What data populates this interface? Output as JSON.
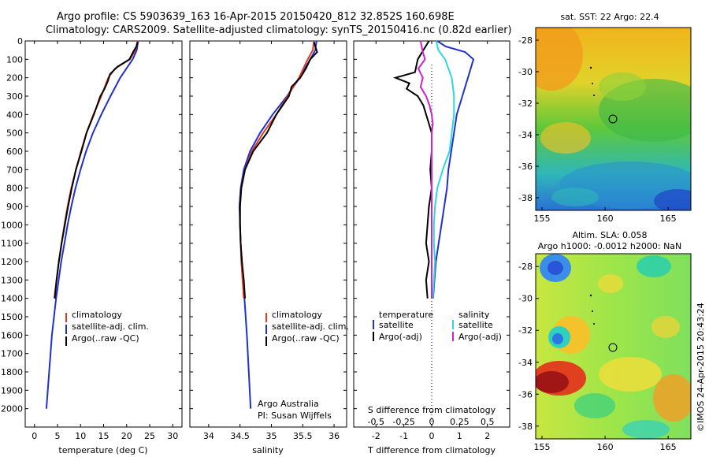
{
  "header": {
    "line1": "Argo profile: CS 5903639_163 16-Apr-2015 20150420_812 32.852S 160.698E",
    "line2": "Climatology: CARS2009. Satellite-adjusted climatology: synTS_20150416.nc (0.82d earlier)"
  },
  "colors": {
    "climatology": "#e03a1e",
    "satellite": "#1f2fd0",
    "argo": "#000000",
    "sat_salinity": "#2fd6e0",
    "argo_salinity_adj": "#d020d0"
  },
  "chart_data": [
    {
      "type": "line",
      "name": "temperature-profile",
      "xlabel": "temperature (deg C)",
      "ylabel": "",
      "xlim": [
        -2,
        32
      ],
      "ylim": [
        2100,
        0
      ],
      "xticks": [
        0,
        5,
        10,
        15,
        20,
        25,
        30
      ],
      "yticks": [
        0,
        100,
        200,
        300,
        400,
        500,
        600,
        700,
        800,
        900,
        1000,
        1100,
        1200,
        1300,
        1400,
        1500,
        1600,
        1700,
        1800,
        1900,
        2000
      ],
      "legend": [
        "climatology",
        "satellite-adj. clim.",
        "Argo(..raw -QC)"
      ],
      "series": [
        {
          "name": "satellite-adj. clim.",
          "color": "#1f2fd0",
          "depth": [
            0,
            50,
            100,
            200,
            300,
            400,
            500,
            600,
            700,
            800,
            900,
            1000,
            1100,
            1200,
            1400,
            1600,
            1800,
            2000
          ],
          "values": [
            22.5,
            22.2,
            21.3,
            18.6,
            16.5,
            14.5,
            12.7,
            11.2,
            10.0,
            8.9,
            8.0,
            7.2,
            6.5,
            5.8,
            4.7,
            3.8,
            3.2,
            2.6
          ]
        },
        {
          "name": "climatology",
          "color": "#e03a1e",
          "depth": [
            0,
            50,
            100,
            150,
            200,
            300,
            400,
            500,
            600,
            700,
            800,
            900,
            1000,
            1100,
            1200,
            1300,
            1400
          ],
          "values": [
            22.4,
            21.9,
            20.7,
            17.5,
            16.0,
            14.5,
            12.8,
            11.3,
            10.1,
            9.0,
            8.0,
            7.2,
            6.5,
            5.9,
            5.3,
            4.8,
            4.3
          ]
        },
        {
          "name": "Argo(..raw -QC)",
          "color": "#000000",
          "depth": [
            5,
            30,
            60,
            100,
            140,
            180,
            220,
            260,
            300,
            400,
            500,
            600,
            700,
            800,
            900,
            1000,
            1100,
            1200,
            1300,
            1400
          ],
          "values": [
            22.4,
            22.1,
            21.4,
            20.6,
            18.0,
            16.4,
            15.9,
            15.2,
            14.3,
            12.9,
            11.3,
            10.2,
            9.0,
            8.1,
            7.3,
            6.6,
            5.9,
            5.3,
            4.8,
            4.4
          ]
        }
      ]
    },
    {
      "type": "line",
      "name": "salinity-profile",
      "xlabel": "salinity",
      "xlim": [
        33.7,
        36.2
      ],
      "ylim": [
        2100,
        0
      ],
      "xticks": [
        34,
        34.5,
        35,
        35.5,
        36
      ],
      "xticklabels": [
        "34",
        "34.5",
        "35",
        "35.5",
        "36"
      ],
      "legend": [
        "climatology",
        "satellite-adj. clim.",
        "Argo(..raw -QC)"
      ],
      "annotation": [
        "Argo Australia",
        "PI: Susan Wijffels"
      ],
      "series": [
        {
          "name": "satellite-adj. clim.",
          "color": "#1f2fd0",
          "depth": [
            0,
            50,
            100,
            200,
            300,
            400,
            500,
            600,
            700,
            800,
            900,
            1000,
            1100,
            1200,
            1400,
            1600,
            1800,
            2000
          ],
          "values": [
            35.72,
            35.7,
            35.62,
            35.45,
            35.25,
            35.02,
            34.82,
            34.66,
            34.56,
            34.51,
            34.49,
            34.5,
            34.51,
            34.53,
            34.57,
            34.61,
            34.64,
            34.67
          ]
        },
        {
          "name": "climatology",
          "color": "#e03a1e",
          "depth": [
            0,
            50,
            100,
            200,
            300,
            400,
            500,
            600,
            700,
            800,
            900,
            1000,
            1100,
            1200,
            1300,
            1400
          ],
          "values": [
            35.68,
            35.66,
            35.58,
            35.44,
            35.26,
            35.08,
            34.87,
            34.69,
            34.58,
            34.52,
            34.5,
            34.5,
            34.51,
            34.52,
            34.54,
            34.56
          ]
        },
        {
          "name": "Argo(..raw -QC)",
          "color": "#000000",
          "depth": [
            5,
            30,
            60,
            100,
            150,
            200,
            250,
            300,
            400,
            500,
            600,
            700,
            800,
            900,
            1000,
            1100,
            1200,
            1300,
            1400
          ],
          "values": [
            35.68,
            35.7,
            35.73,
            35.62,
            35.55,
            35.46,
            35.32,
            35.28,
            35.08,
            34.93,
            34.71,
            34.58,
            34.52,
            34.5,
            34.5,
            34.51,
            34.53,
            34.56,
            34.58
          ]
        }
      ]
    },
    {
      "type": "line",
      "name": "difference-profile",
      "xlabel": "T difference from climatology",
      "xlabel2": "S difference from climatology",
      "xlim": [
        -2.8,
        2.8
      ],
      "ylim": [
        2100,
        0
      ],
      "xticks": [
        -2,
        -1,
        0,
        1,
        2
      ],
      "xticklabels": [
        "-2",
        "-1",
        "0",
        "1",
        "2"
      ],
      "s_ticklabels": [
        "-0.5",
        "-0.25",
        "0",
        "0.25",
        "0.5"
      ],
      "legend": {
        "temperature_title": "temperature",
        "salinity_title": "salinity",
        "items": [
          "satellite",
          "Argo(-adj)",
          "satellite",
          "Argo(-adj)"
        ]
      },
      "series": [
        {
          "name": "T satellite",
          "color": "#1f2fd0",
          "depth": [
            0,
            30,
            60,
            100,
            200,
            300,
            400,
            500,
            600,
            700,
            800,
            900,
            1000,
            1100,
            1200,
            1300,
            1400
          ],
          "values": [
            0.2,
            0.5,
            1.2,
            1.5,
            1.3,
            1.1,
            0.9,
            0.8,
            0.7,
            0.6,
            0.55,
            0.45,
            0.35,
            0.25,
            0.15,
            0.1,
            0.05
          ]
        },
        {
          "name": "T Argo(-adj)",
          "color": "#000000",
          "depth": [
            0,
            50,
            100,
            170,
            200,
            230,
            260,
            300,
            350,
            400,
            450,
            500,
            600,
            700,
            800,
            900,
            1000,
            1100,
            1200,
            1300,
            1400
          ],
          "values": [
            -0.1,
            -0.3,
            -0.5,
            -0.6,
            -1.3,
            -0.8,
            -0.9,
            -0.5,
            -0.3,
            -0.2,
            -0.1,
            0,
            0,
            -0.05,
            0,
            -0.1,
            -0.15,
            -0.2,
            -0.1,
            -0.2,
            -0.15
          ]
        },
        {
          "name": "S satellite",
          "color": "#2fd6e0",
          "depth": [
            0,
            50,
            100,
            200,
            300,
            400,
            500,
            600,
            700,
            800,
            900,
            1000,
            1100,
            1200,
            1300,
            1400
          ],
          "values": [
            0.04,
            0.06,
            0.12,
            0.18,
            0.2,
            0.2,
            0.18,
            0.16,
            0.1,
            0.05,
            0.03,
            0.02,
            0.02,
            0.03,
            0.02,
            0.01
          ]
        },
        {
          "name": "S Argo(-adj)",
          "color": "#d020d0",
          "depth": [
            0,
            60,
            100,
            150,
            200,
            250,
            300,
            350,
            400,
            450,
            500,
            600,
            700,
            800,
            900,
            1000,
            1100,
            1200,
            1300,
            1400
          ],
          "values": [
            -0.1,
            -0.08,
            -0.06,
            -0.12,
            -0.08,
            -0.1,
            -0.05,
            -0.02,
            0,
            0.01,
            0,
            0,
            0,
            0,
            0,
            0,
            0,
            0,
            0,
            0
          ]
        }
      ]
    },
    {
      "type": "heatmap",
      "name": "sst-map",
      "title": "sat. SST: 22 Argo: 22.4",
      "xticks": [
        155,
        160,
        165
      ],
      "yticks": [
        -28,
        -30,
        -32,
        -34,
        -36,
        -38
      ],
      "argo_position": {
        "lon": 160.698,
        "lat": -32.852
      }
    },
    {
      "type": "heatmap",
      "name": "sla-map",
      "title_line1": "Altim. SLA: 0.058",
      "title_line2": "Argo h1000: -0.0012 h2000: NaN",
      "xticks": [
        155,
        160,
        165
      ],
      "yticks": [
        -28,
        -30,
        -32,
        -34,
        -36,
        -38
      ],
      "argo_position": {
        "lon": 160.698,
        "lat": -32.852
      }
    }
  ],
  "footer": {
    "stamp": "©IMOS 24-Apr-2015 20:43:24"
  }
}
